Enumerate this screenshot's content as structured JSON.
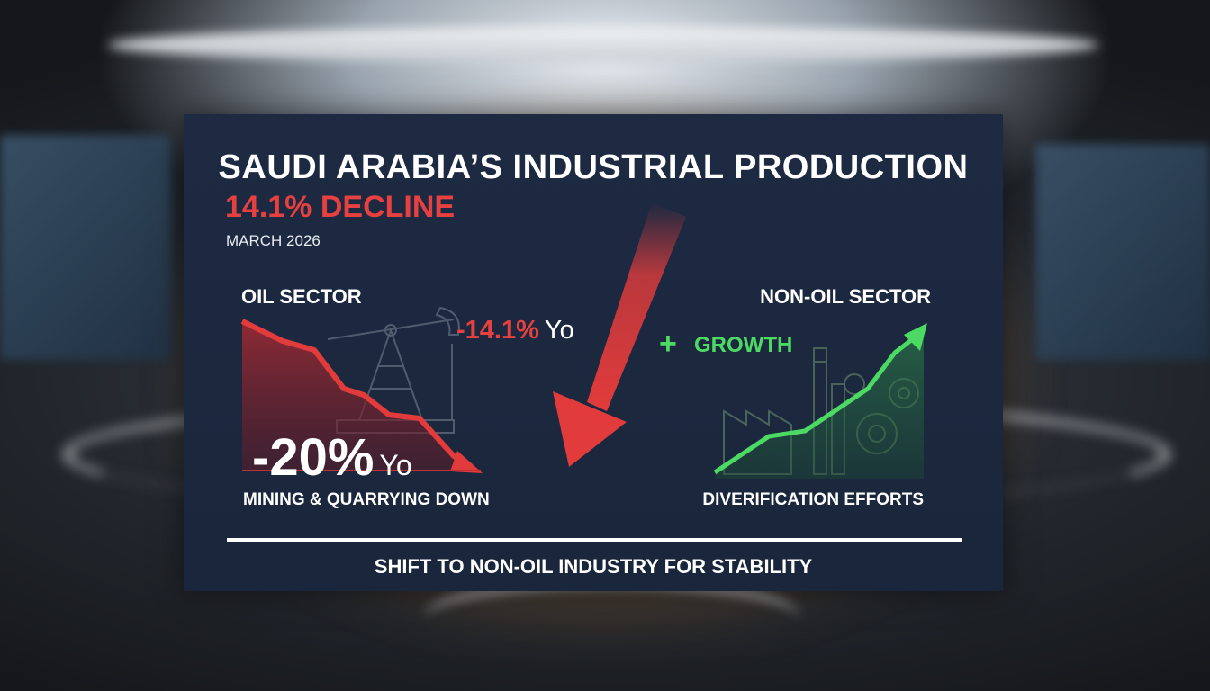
{
  "title": "SAUDI ARABIA’S INDUSTRIAL PRODUCTION",
  "headline_decline": "14.1% DECLINE",
  "date": "MARCH 2026",
  "oil_sector": {
    "label": "OIL SECTOR",
    "change_value": "-14.1%",
    "change_unit": "Yo",
    "big_value": "-20%",
    "big_unit": "Yo",
    "caption": "MINING & QUARRYING DOWN",
    "icon": "oil-pump-icon",
    "trend": "down"
  },
  "non_oil_sector": {
    "label": "NON-OIL SECTOR",
    "growth_symbol": "+",
    "growth_label": "GROWTH",
    "caption": "DIVERIFICATION EFFORTS",
    "icons": [
      "factory-icon",
      "gear-icon"
    ],
    "trend": "up"
  },
  "footer": "SHIFT TO NON-OIL INDUSTRY FOR STABILITY",
  "colors": {
    "panel": "#1d2a42",
    "decline_red": "#e64040",
    "growth_green": "#4cd964",
    "text": "#ffffff"
  }
}
